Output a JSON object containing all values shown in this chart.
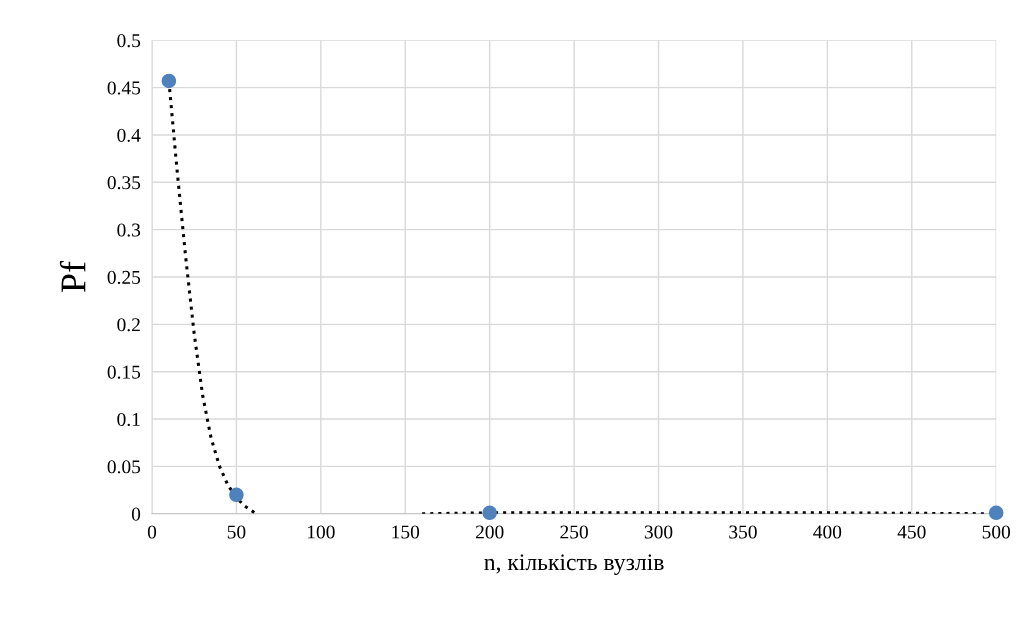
{
  "chart_data": {
    "type": "scatter",
    "xlabel": "n, кількість вузлів",
    "ylabel": "Pf",
    "xlim": [
      0,
      500
    ],
    "xticks": [
      0,
      50,
      100,
      150,
      200,
      250,
      300,
      350,
      400,
      450,
      500
    ],
    "ylim": [
      0,
      0.5
    ],
    "yticks": [
      0,
      0.05,
      0.1,
      0.15,
      0.2,
      0.25,
      0.3,
      0.35,
      0.4,
      0.45,
      0.5
    ],
    "grid": true,
    "marker": "circle",
    "series": [
      {
        "color": "#4f81bd",
        "x": [
          10,
          50,
          200,
          500
        ],
        "values": [
          0.457,
          0.02,
          0.001,
          0.001
        ]
      },
      {
        "type": "line",
        "color": "#000000",
        "line_style": "dotted",
        "marker": "none",
        "x": [
          10,
          15,
          20,
          25,
          30,
          35,
          40,
          45,
          50,
          55,
          60,
          62,
          110,
          160,
          200,
          300,
          400,
          500
        ],
        "values": [
          0.457,
          0.36,
          0.27,
          0.19,
          0.125,
          0.08,
          0.05,
          0.03,
          0.017,
          0.008,
          0.002,
          0,
          null,
          0,
          0.001,
          0.001,
          0.001,
          0
        ]
      }
    ]
  }
}
